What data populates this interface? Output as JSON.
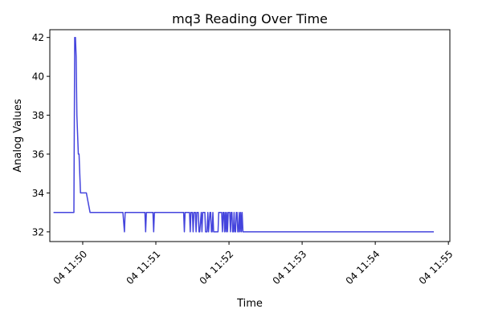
{
  "chart_data": {
    "type": "line",
    "title": "mq3 Reading Over Time",
    "xlabel": "Time",
    "ylabel": "Analog Values",
    "line_color": "#4444dd",
    "x_unit": "minutes after 11:49",
    "xlim": [
      0.55,
      6.02
    ],
    "ylim": [
      31.5,
      42.4
    ],
    "y_ticks": [
      32,
      34,
      36,
      38,
      40,
      42
    ],
    "x_ticks": [
      {
        "value": 1,
        "label": "04 11:50"
      },
      {
        "value": 2,
        "label": "04 11:51"
      },
      {
        "value": 3,
        "label": "04 11:52"
      },
      {
        "value": 4,
        "label": "04 11:53"
      },
      {
        "value": 5,
        "label": "04 11:54"
      },
      {
        "value": 6,
        "label": "04 11:55"
      }
    ],
    "series": [
      {
        "name": "mq3",
        "x": [
          0.6,
          0.88,
          0.89,
          0.9,
          0.91,
          0.92,
          0.93,
          0.94,
          0.95,
          0.96,
          0.97,
          0.98,
          1.02,
          1.04,
          1.05,
          1.1,
          1.3,
          1.55,
          1.57,
          1.58,
          1.59,
          1.6,
          1.85,
          1.86,
          1.87,
          1.96,
          1.97,
          1.98,
          2.1,
          2.38,
          2.39,
          2.4,
          2.45,
          2.46,
          2.47,
          2.48,
          2.5,
          2.51,
          2.52,
          2.54,
          2.55,
          2.56,
          2.58,
          2.59,
          2.6,
          2.62,
          2.63,
          2.64,
          2.66,
          2.67,
          2.68,
          2.7,
          2.71,
          2.72,
          2.74,
          2.75,
          2.76,
          2.77,
          2.78,
          2.79,
          2.8,
          2.81,
          2.82,
          2.85,
          2.86,
          2.87,
          2.9,
          2.91,
          2.92,
          2.93,
          2.94,
          2.95,
          2.96,
          2.97,
          2.98,
          2.99,
          3.0,
          3.01,
          3.02,
          3.03,
          3.04,
          3.05,
          3.06,
          3.07,
          3.08,
          3.09,
          3.1,
          3.11,
          3.12,
          3.13,
          3.14,
          3.15,
          3.16,
          3.17,
          3.18,
          3.19,
          3.2,
          3.21,
          3.22,
          3.23,
          3.24,
          3.25,
          3.26,
          3.27,
          3.28,
          3.29,
          3.3,
          3.31,
          3.32,
          3.33,
          3.34,
          3.35,
          3.36,
          3.37,
          3.38,
          3.39,
          3.4,
          3.42,
          3.43,
          3.44,
          3.45,
          3.46,
          3.47,
          3.48,
          3.49,
          3.5,
          3.51,
          3.52,
          3.53,
          3.54,
          3.55,
          3.56,
          3.57,
          3.58,
          3.59,
          3.6,
          3.61,
          3.62,
          3.63,
          3.64,
          3.65,
          3.7,
          5.8
        ],
        "y": [
          33,
          33,
          42,
          42,
          41,
          38,
          37,
          36,
          36,
          35,
          34,
          34,
          34,
          34,
          34,
          33,
          33,
          33,
          32,
          33,
          33,
          33,
          33,
          32,
          33,
          33,
          32,
          33,
          33,
          33,
          32,
          33,
          33,
          33,
          32,
          33,
          33,
          32,
          33,
          33,
          32,
          33,
          33,
          32,
          32,
          33,
          32,
          33,
          33,
          33,
          32,
          32,
          33,
          32,
          33,
          33,
          32,
          32,
          33,
          32,
          32,
          32,
          32,
          32,
          33,
          33,
          33,
          32,
          33,
          33,
          32,
          33,
          32,
          33,
          32,
          33,
          33,
          33,
          32,
          33,
          33,
          32,
          32,
          33,
          32,
          32,
          33,
          33,
          32,
          32,
          33,
          32,
          33,
          32,
          33,
          32,
          32,
          32,
          32,
          32,
          32,
          32,
          32,
          32,
          32,
          32,
          32,
          32,
          32,
          32,
          32,
          32,
          32,
          32,
          32,
          32,
          32,
          32,
          32,
          32,
          32,
          32,
          32,
          32,
          32,
          32,
          32,
          32,
          32,
          32,
          32,
          32,
          32,
          32,
          32,
          32,
          32,
          32,
          32,
          32,
          32,
          32,
          32
        ]
      }
    ]
  }
}
